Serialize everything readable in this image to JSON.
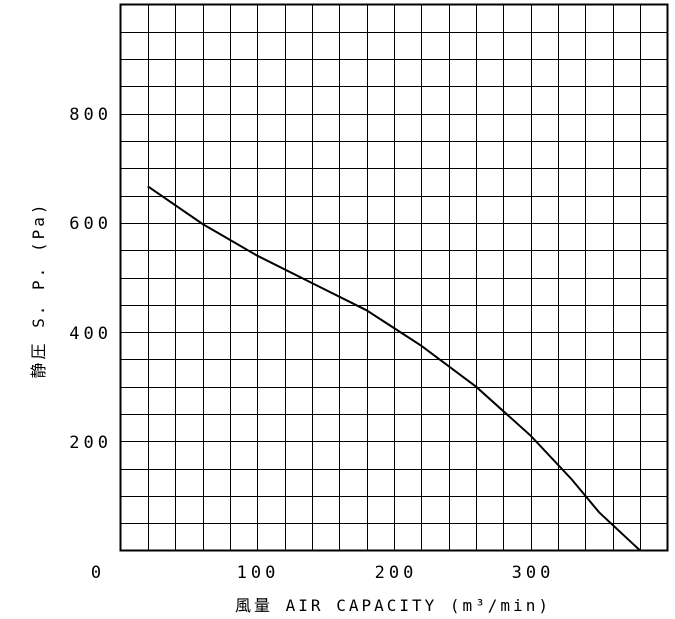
{
  "chart_data": {
    "type": "line",
    "title": "",
    "xlabel": "風量 AIR CAPACITY (m³/min)",
    "ylabel": "静圧 S. P. (Pa)",
    "xlim": [
      0,
      400
    ],
    "ylim": [
      0,
      1000
    ],
    "x_ticks": [
      "0",
      "100",
      "200",
      "300"
    ],
    "y_ticks": [
      "200",
      "400",
      "600",
      "800"
    ],
    "grid": true,
    "series": [
      {
        "x": [
          20,
          60,
          100,
          140,
          180,
          220,
          260,
          300,
          330,
          350,
          380
        ],
        "y": [
          667,
          598,
          540,
          490,
          440,
          375,
          300,
          210,
          130,
          70,
          0
        ],
        "color": "#000000"
      }
    ]
  }
}
